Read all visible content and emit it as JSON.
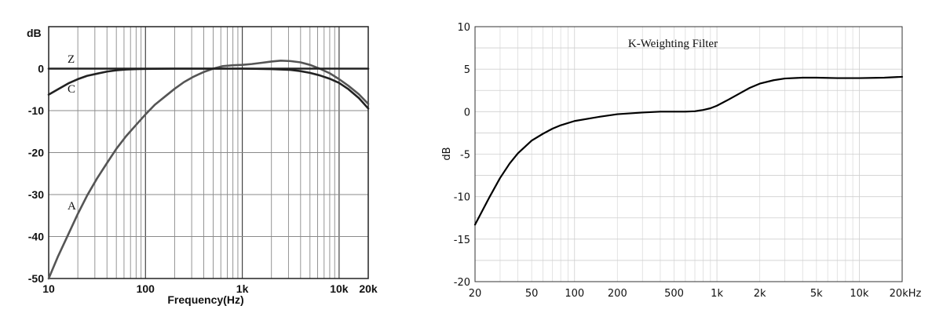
{
  "chart_data": [
    {
      "type": "line",
      "ylabel": "dB",
      "xlabel": "Frequency(Hz)",
      "x_scale": "log",
      "xlim": [
        10,
        20000
      ],
      "ylim": [
        -50,
        10
      ],
      "x_ticks": [
        {
          "v": 10,
          "label": "10"
        },
        {
          "v": 100,
          "label": "100"
        },
        {
          "v": 1000,
          "label": "1k"
        },
        {
          "v": 10000,
          "label": "10k"
        },
        {
          "v": 20000,
          "label": "20k"
        }
      ],
      "y_ticks": [
        {
          "v": 0,
          "label": "0"
        },
        {
          "v": -10,
          "label": "-10"
        },
        {
          "v": -20,
          "label": "-20"
        },
        {
          "v": -30,
          "label": "-30"
        },
        {
          "v": -40,
          "label": "-40"
        },
        {
          "v": -50,
          "label": "-50"
        }
      ],
      "grid": true,
      "series": [
        {
          "name": "A",
          "color": "#555555",
          "x": [
            10,
            12.5,
            16,
            20,
            25,
            31.5,
            40,
            50,
            63,
            80,
            100,
            125,
            160,
            200,
            250,
            315,
            400,
            500,
            630,
            800,
            1000,
            1250,
            1600,
            2000,
            2500,
            3150,
            4000,
            5000,
            6300,
            8000,
            10000,
            12500,
            16000,
            20000
          ],
          "y": [
            -50,
            -44.7,
            -39.4,
            -34.6,
            -30.2,
            -26.2,
            -22.5,
            -19.1,
            -16.1,
            -13.4,
            -10.9,
            -8.6,
            -6.6,
            -4.8,
            -3.2,
            -1.9,
            -0.8,
            0,
            0.6,
            0.8,
            0.9,
            1.1,
            1.4,
            1.7,
            1.9,
            1.8,
            1.5,
            0.9,
            0,
            -1.1,
            -2.5,
            -4.1,
            -6.1,
            -8.4
          ]
        },
        {
          "name": "C",
          "color": "#222222",
          "x": [
            10,
            12.5,
            16,
            20,
            25,
            31.5,
            40,
            50,
            63,
            80,
            100,
            200,
            500,
            1000,
            2000,
            3150,
            4000,
            5000,
            6300,
            8000,
            10000,
            12500,
            16000,
            20000
          ],
          "y": [
            -6.2,
            -4.9,
            -3.5,
            -2.5,
            -1.7,
            -1.2,
            -0.7,
            -0.4,
            -0.2,
            -0.1,
            -0.05,
            0,
            0,
            0,
            -0.1,
            -0.3,
            -0.6,
            -1.0,
            -1.6,
            -2.4,
            -3.4,
            -4.9,
            -7.0,
            -9.5
          ]
        },
        {
          "name": "Z",
          "color": "#222222",
          "x": [
            10,
            20000
          ],
          "y": [
            0,
            0
          ]
        }
      ]
    },
    {
      "type": "line",
      "title": "K-Weighting Filter",
      "ylabel": "dB",
      "x_scale": "log",
      "xlim": [
        20,
        20000
      ],
      "ylim": [
        -20,
        10
      ],
      "x_ticks": [
        {
          "v": 20,
          "label": "20"
        },
        {
          "v": 50,
          "label": "50"
        },
        {
          "v": 100,
          "label": "100"
        },
        {
          "v": 200,
          "label": "200"
        },
        {
          "v": 500,
          "label": "500"
        },
        {
          "v": 1000,
          "label": "1k"
        },
        {
          "v": 2000,
          "label": "2k"
        },
        {
          "v": 5000,
          "label": "5k"
        },
        {
          "v": 10000,
          "label": "10k"
        },
        {
          "v": 20000,
          "label": "20kHz"
        }
      ],
      "y_ticks": [
        {
          "v": 10,
          "label": "10"
        },
        {
          "v": 5,
          "label": "5"
        },
        {
          "v": 0,
          "label": "0"
        },
        {
          "v": -5,
          "label": "-5"
        },
        {
          "v": -10,
          "label": "-10"
        },
        {
          "v": -15,
          "label": "-15"
        },
        {
          "v": -20,
          "label": "-20"
        }
      ],
      "grid": true,
      "series": [
        {
          "color": "#000000",
          "x": [
            20,
            25,
            30,
            35,
            40,
            50,
            60,
            70,
            80,
            100,
            150,
            200,
            300,
            400,
            500,
            600,
            700,
            800,
            900,
            1000,
            1200,
            1500,
            1700,
            2000,
            2500,
            3000,
            4000,
            5000,
            7000,
            10000,
            15000,
            20000
          ],
          "y": [
            -13.3,
            -10.2,
            -7.8,
            -6.1,
            -4.9,
            -3.4,
            -2.6,
            -2.0,
            -1.6,
            -1.1,
            -0.6,
            -0.3,
            -0.1,
            0,
            0,
            0,
            0.05,
            0.2,
            0.4,
            0.7,
            1.4,
            2.3,
            2.8,
            3.3,
            3.7,
            3.9,
            4.0,
            4.0,
            3.95,
            3.95,
            4.0,
            4.1
          ]
        }
      ]
    }
  ]
}
